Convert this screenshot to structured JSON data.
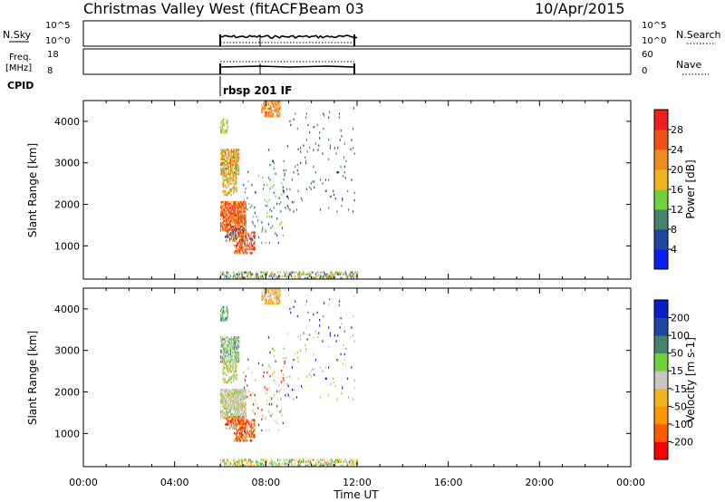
{
  "header": {
    "title": "Christmas Valley West (fitACF)",
    "beam": "Beam 03",
    "date": "10/Apr/2015"
  },
  "cpid_label": "CPID",
  "cpid_value": "rbsp 201 IF",
  "colors": {
    "power": [
      "#0a1ef0",
      "#1e46a0",
      "#46826e",
      "#6ed23c",
      "#f0b41e",
      "#f08c1e",
      "#f05014",
      "#f01e1e"
    ],
    "velocity": [
      "#ff0000",
      "#ff5a00",
      "#ff9600",
      "#f0b41e",
      "#c8c8c0",
      "#6ed23c",
      "#46826e",
      "#1e46a0",
      "#0a1ec8"
    ]
  },
  "chart_data": [
    {
      "type": "line",
      "panel": "N.Sky / N.Search",
      "left_label": "N.Sky",
      "right_label": "N.Search",
      "left_ticks": [
        "10^5",
        "10^0"
      ],
      "right_ticks": [
        "10^5",
        "10^0"
      ],
      "x_range_hours": [
        0,
        24
      ],
      "data_interval_hours": [
        6,
        12
      ]
    },
    {
      "type": "line",
      "panel": "Freq / Nave",
      "left_label": "Freq. [MHz]",
      "right_label": "Nave",
      "left_ticks": [
        "18",
        "8"
      ],
      "right_ticks": [
        "60",
        "0"
      ],
      "ylim_left": [
        8,
        18
      ],
      "ylim_right": [
        0,
        60
      ],
      "data_interval_hours": [
        6,
        12
      ]
    },
    {
      "type": "heatmap",
      "panel": "Power",
      "ylabel": "Slant Range [km]",
      "yticks": [
        "4000",
        "3000",
        "2000",
        "1000"
      ],
      "ylim": [
        200,
        4500
      ],
      "colorbar_label": "Power [dB]",
      "colorbar_ticks": [
        "28",
        "24",
        "20",
        "16",
        "12",
        "8",
        "4"
      ],
      "colorbar_range": [
        0,
        32
      ]
    },
    {
      "type": "heatmap",
      "panel": "Velocity",
      "ylabel": "Slant Range [km]",
      "yticks": [
        "4000",
        "3000",
        "2000",
        "1000"
      ],
      "ylim": [
        200,
        4500
      ],
      "colorbar_label": "Velocity [m s-1]",
      "colorbar_ticks": [
        "200",
        "100",
        "50",
        "15",
        "-15",
        "-50",
        "-100",
        "-200"
      ]
    }
  ],
  "xaxis": {
    "label": "Time UT",
    "ticks": [
      "00:00",
      "04:00",
      "08:00",
      "12:00",
      "16:00",
      "20:00",
      "00:00"
    ]
  }
}
